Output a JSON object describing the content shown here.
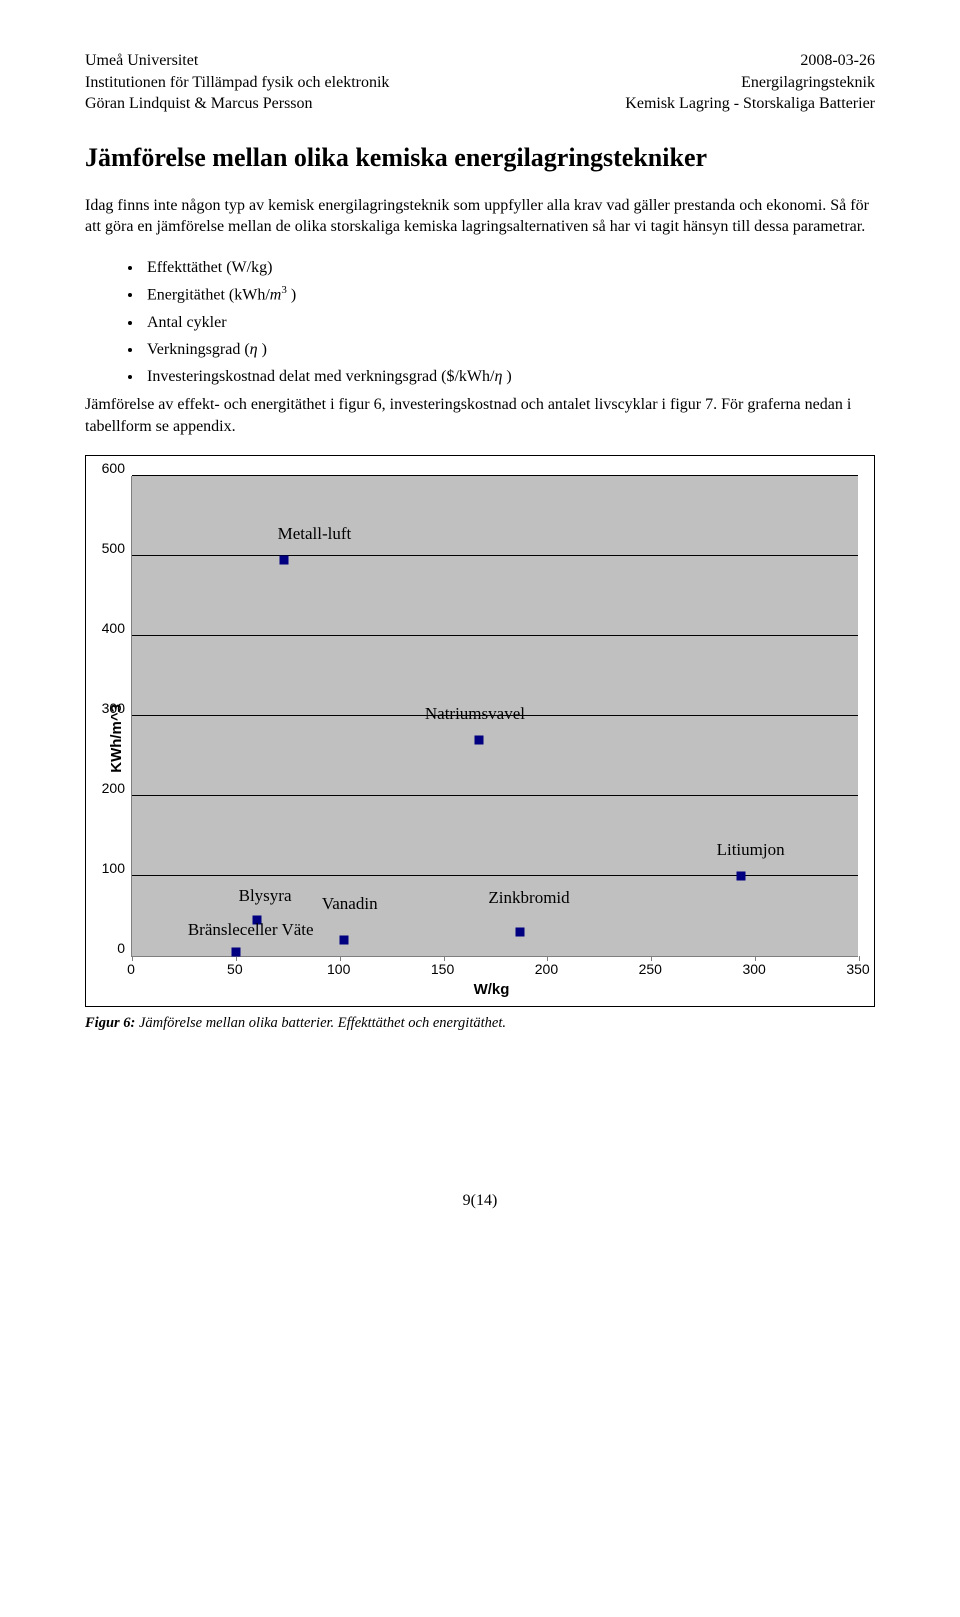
{
  "header": {
    "left": [
      "Umeå Universitet",
      "Institutionen för Tillämpad fysik och elektronik",
      "Göran Lindquist & Marcus Persson"
    ],
    "right": [
      "2008-03-26",
      "Energilagringsteknik",
      "Kemisk Lagring - Storskaliga Batterier"
    ]
  },
  "title": "Jämförelse mellan olika kemiska energilagringstekniker",
  "para1": "Idag finns inte någon typ av kemisk energilagringsteknik som uppfyller alla krav vad gäller prestanda och ekonomi. Så för att göra en jämförelse mellan de olika storskaliga kemiska lagringsalternativen så har vi tagit hänsyn till dessa parametrar.",
  "bullets": {
    "b1": "Effekttäthet (W/kg)",
    "b2_pre": "Energitäthet (kWh/",
    "b2_var": "m",
    "b2_sup": "3",
    "b2_post": " )",
    "b3": "Antal cykler",
    "b4_pre": "Verkningsgrad (",
    "b4_eta": "η",
    "b4_post": " )",
    "b5_pre": "Investeringskostnad delat med verkningsgrad ($/kWh/",
    "b5_eta": "η",
    "b5_post": " )"
  },
  "para2": "Jämförelse av effekt- och energitäthet i figur 6, investeringskostnad och antalet livscyklar i figur 7. För graferna nedan i tabellform se appendix.",
  "chart": {
    "type": "scatter",
    "ylabel": "KWh/m^3",
    "xlabel": "W/kg",
    "xlim": [
      0,
      350
    ],
    "ylim": [
      0,
      600
    ],
    "ytick_step": 100,
    "xtick_step": 50,
    "yticks": [
      600,
      500,
      400,
      300,
      200,
      100,
      0
    ],
    "xticks": [
      0,
      50,
      100,
      150,
      200,
      250,
      300,
      350
    ],
    "plot_bg": "#c0c0c0",
    "grid_color": "#000000",
    "axis_color": "#7f7f7f",
    "tick_fontsize": 14,
    "label_fontsize": 15,
    "marker_size": 9,
    "series": [
      {
        "name": "Metall-luft",
        "x": 73,
        "y": 495,
        "color": "#000080",
        "label_dx": -6,
        "label_dy": 24
      },
      {
        "name": "Natriumsvavel",
        "x": 167,
        "y": 270,
        "color": "#000080",
        "label_dx": -54,
        "label_dy": 24
      },
      {
        "name": "Litiumjon",
        "x": 293,
        "y": 100,
        "color": "#000080",
        "label_dx": -24,
        "label_dy": 24
      },
      {
        "name": "Blysyra",
        "x": 60,
        "y": 45,
        "color": "#000080",
        "label_dx": -18,
        "label_dy": 22
      },
      {
        "name": "Vanadin",
        "x": 102,
        "y": 20,
        "color": "#000080",
        "label_dx": -22,
        "label_dy": 34
      },
      {
        "name": "Zinkbromid",
        "x": 187,
        "y": 30,
        "color": "#000080",
        "label_dx": -32,
        "label_dy": 32
      },
      {
        "name": "Bränsleceller Väte",
        "x": 50,
        "y": 5,
        "color": "#000080",
        "label_dx": -48,
        "label_dy": 20
      }
    ]
  },
  "caption": {
    "lead": "Figur 6:",
    "text": " Jämförelse mellan olika batterier. Effekttäthet och energitäthet."
  },
  "pagenum": "9(14)"
}
